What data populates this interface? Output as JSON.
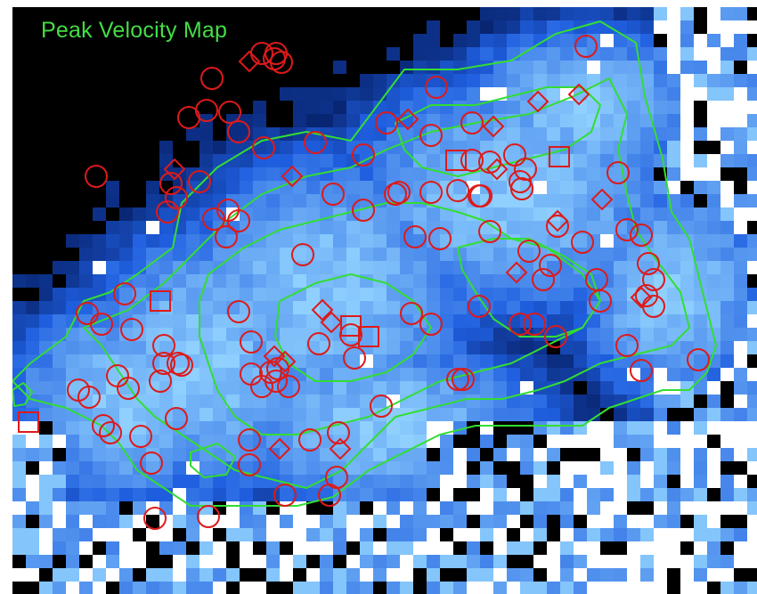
{
  "figure": {
    "title": "Peak Velocity Map"
  },
  "colors": {
    "background": "#000000",
    "map_low": "#00104a",
    "map_mid": "#1f5fe0",
    "map_high": "#8fd0ff",
    "map_saturated": "#ffffff",
    "contours": "#33dd33",
    "markers": "#dd1a1a",
    "title": "#44dd44"
  },
  "markers": {
    "shape_types": [
      "circle",
      "diamond",
      "square"
    ]
  }
}
